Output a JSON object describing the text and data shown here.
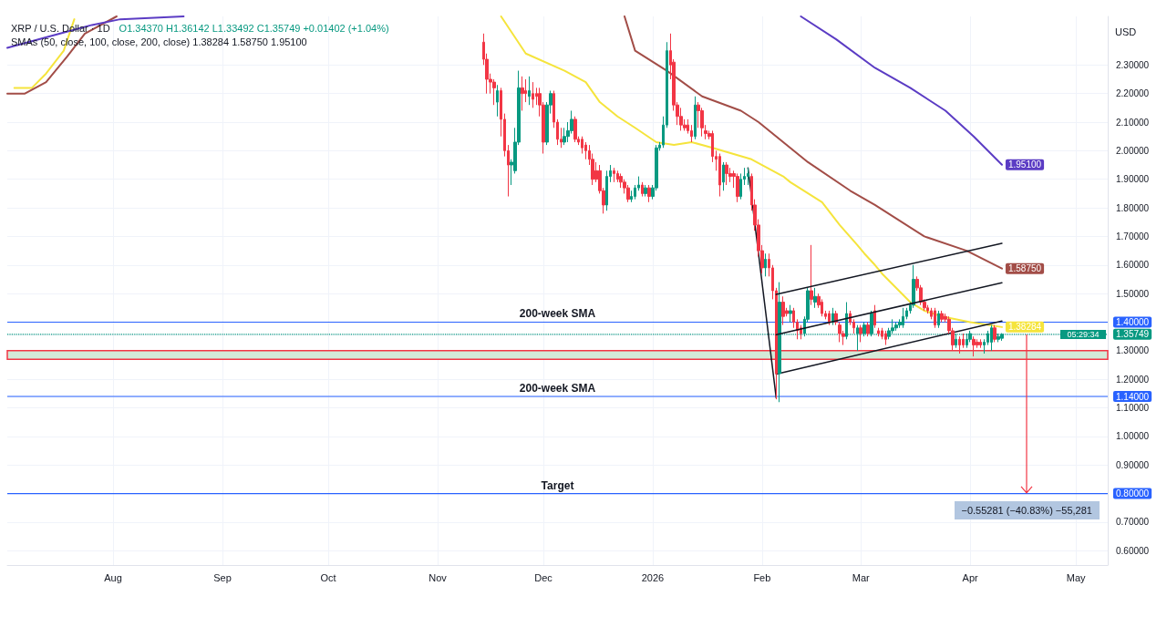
{
  "chart_data": {
    "type": "candlestick",
    "title": "XRP / U.S. Dollar · 1D",
    "ylabel": "USD",
    "annotations": [
      "O1.34370 H1.36142 L1.33492 C1.35749 +0.01402 (+1.04%)",
      "SMAs (50, close, 100, close, 200, close) 1.38284 1.58750 1.95100",
      "05:29:34",
      {
        "text": "−0.55281 (−40.83%) −55,281",
        "x": "2026-04-17",
        "y": 0.8
      }
    ],
    "xlim": [
      "2025-07-02",
      "2026-05-10"
    ],
    "xticks": [
      {
        "value": "2025-08-01",
        "label": "Aug"
      },
      {
        "value": "2025-09-01",
        "label": "Sep"
      },
      {
        "value": "2025-10-01",
        "label": "Oct"
      },
      {
        "value": "2025-11-01",
        "label": "Nov"
      },
      {
        "value": "2025-12-01",
        "label": "Dec"
      },
      {
        "value": "2026-01-01",
        "label": "2026"
      },
      {
        "value": "2026-02-01",
        "label": "Feb"
      },
      {
        "value": "2026-03-01",
        "label": "Mar"
      },
      {
        "value": "2026-04-01",
        "label": "Apr"
      },
      {
        "value": "2026-05-01",
        "label": "May"
      }
    ],
    "ylim": [
      0.55,
      2.47
    ],
    "yticks": [
      {
        "value": 0.6,
        "label": "0.60000"
      },
      {
        "value": 0.7,
        "label": "0.70000"
      },
      {
        "value": 0.8,
        "label": "0.80000"
      },
      {
        "value": 0.9,
        "label": "0.90000"
      },
      {
        "value": 1.0,
        "label": "1.00000"
      },
      {
        "value": 1.1,
        "label": "1.10000"
      },
      {
        "value": 1.14,
        "label": "1.14000"
      },
      {
        "value": 1.2,
        "label": "1.20000"
      },
      {
        "value": 1.3,
        "label": "1.30000"
      },
      {
        "value": 1.35749,
        "label": "1.35749"
      },
      {
        "value": 1.4,
        "label": "1.40000"
      },
      {
        "value": 1.5,
        "label": "1.50000"
      },
      {
        "value": 1.6,
        "label": "1.60000"
      },
      {
        "value": 1.7,
        "label": "1.70000"
      },
      {
        "value": 1.8,
        "label": "1.80000"
      },
      {
        "value": 1.9,
        "label": "1.90000"
      },
      {
        "value": 2.0,
        "label": "2.00000"
      },
      {
        "value": 2.1,
        "label": "2.10000"
      },
      {
        "value": 2.2,
        "label": "2.20000"
      },
      {
        "value": 2.3,
        "label": "2.30000"
      }
    ],
    "grid": true,
    "marker": "none",
    "line_style": "solid",
    "ref_lines": [
      {
        "axis": "y",
        "value": 1.4,
        "label": "200-week SMA",
        "color": "#2962ff"
      },
      {
        "axis": "y",
        "value": 1.14,
        "label": "200-week SMA",
        "color": "#2962ff"
      },
      {
        "axis": "y",
        "value": 0.8,
        "label": "Target",
        "color": "#2962ff"
      },
      {
        "axis": "y",
        "value": 1.35749,
        "color": "#089981",
        "line_style": "dotted"
      }
    ],
    "bands": [
      {
        "axis": "y",
        "from": 1.27,
        "to": 1.3,
        "color": "#d3ead8"
      }
    ],
    "series": [
      {
        "x": [
          "2025-11-14",
          "2025-11-15",
          "2025-11-16",
          "2025-11-17",
          "2025-11-18",
          "2025-11-19",
          "2025-11-20",
          "2025-11-21",
          "2025-11-22",
          "2025-11-23",
          "2025-11-24",
          "2025-11-25",
          "2025-11-26",
          "2025-11-27",
          "2025-11-28",
          "2025-11-29",
          "2025-11-30",
          "2025-12-01",
          "2025-12-02",
          "2025-12-03",
          "2025-12-04",
          "2025-12-05",
          "2025-12-06",
          "2025-12-07",
          "2025-12-08",
          "2025-12-09",
          "2025-12-10",
          "2025-12-11",
          "2025-12-12",
          "2025-12-13",
          "2025-12-14",
          "2025-12-15",
          "2025-12-16",
          "2025-12-17",
          "2025-12-18",
          "2025-12-19",
          "2025-12-20",
          "2025-12-21",
          "2025-12-22",
          "2025-12-23",
          "2025-12-24",
          "2025-12-25",
          "2025-12-26",
          "2025-12-27",
          "2025-12-28",
          "2025-12-29",
          "2025-12-30",
          "2025-12-31",
          "2026-01-01",
          "2026-01-02",
          "2026-01-03",
          "2026-01-04",
          "2026-01-05",
          "2026-01-06",
          "2026-01-07",
          "2026-01-08",
          "2026-01-09",
          "2026-01-10",
          "2026-01-11",
          "2026-01-12",
          "2026-01-13",
          "2026-01-14",
          "2026-01-15",
          "2026-01-16",
          "2026-01-17",
          "2026-01-18",
          "2026-01-19",
          "2026-01-20",
          "2026-01-21",
          "2026-01-22",
          "2026-01-23",
          "2026-01-24",
          "2026-01-25",
          "2026-01-26",
          "2026-01-27",
          "2026-01-28",
          "2026-01-29",
          "2026-01-30",
          "2026-01-31",
          "2026-02-01",
          "2026-02-02",
          "2026-02-03",
          "2026-02-04",
          "2026-02-05",
          "2026-02-06",
          "2026-02-07",
          "2026-02-08",
          "2026-02-09",
          "2026-02-10",
          "2026-02-11",
          "2026-02-12",
          "2026-02-13",
          "2026-02-14",
          "2026-02-15",
          "2026-02-16",
          "2026-02-17",
          "2026-02-18",
          "2026-02-19",
          "2026-02-20",
          "2026-02-21",
          "2026-02-22",
          "2026-02-23",
          "2026-02-24",
          "2026-02-25",
          "2026-02-26",
          "2026-02-27",
          "2026-02-28",
          "2026-03-01",
          "2026-03-02",
          "2026-03-03",
          "2026-03-04",
          "2026-03-05",
          "2026-03-06",
          "2026-03-07",
          "2026-03-08",
          "2026-03-09",
          "2026-03-10",
          "2026-03-11",
          "2026-03-12",
          "2026-03-13",
          "2026-03-14",
          "2026-03-15",
          "2026-03-16",
          "2026-03-17",
          "2026-03-18",
          "2026-03-19",
          "2026-03-20",
          "2026-03-21",
          "2026-03-22",
          "2026-03-23",
          "2026-03-24",
          "2026-03-25",
          "2026-03-26",
          "2026-03-27",
          "2026-03-28",
          "2026-03-29",
          "2026-03-30",
          "2026-03-31",
          "2026-04-01",
          "2026-04-02",
          "2026-04-03",
          "2026-04-04",
          "2026-04-05",
          "2026-04-06",
          "2026-04-07",
          "2026-04-08",
          "2026-04-09",
          "2026-04-10"
        ],
        "ohlc": [
          [
            2.38,
            2.41,
            2.3,
            2.32
          ],
          [
            2.32,
            2.34,
            2.2,
            2.25
          ],
          [
            2.25,
            2.27,
            2.2,
            2.24
          ],
          [
            2.24,
            2.25,
            2.16,
            2.22
          ],
          [
            2.17,
            2.23,
            2.12,
            2.21
          ],
          [
            2.21,
            2.22,
            2.05,
            2.11
          ],
          [
            2.11,
            2.13,
            1.98,
            2.0
          ],
          [
            2.0,
            2.02,
            1.84,
            1.95
          ],
          [
            1.95,
            1.97,
            1.88,
            1.96
          ],
          [
            1.93,
            2.08,
            1.92,
            2.03
          ],
          [
            2.03,
            2.28,
            2.02,
            2.22
          ],
          [
            2.22,
            2.26,
            2.14,
            2.2
          ],
          [
            2.21,
            2.25,
            2.17,
            2.2
          ],
          [
            2.19,
            2.26,
            2.16,
            2.21
          ],
          [
            2.2,
            2.24,
            2.15,
            2.18
          ],
          [
            2.2,
            2.22,
            2.16,
            2.19
          ],
          [
            2.2,
            2.22,
            2.12,
            2.16
          ],
          [
            2.16,
            2.17,
            1.99,
            2.03
          ],
          [
            2.03,
            2.17,
            2.02,
            2.16
          ],
          [
            2.16,
            2.21,
            2.13,
            2.2
          ],
          [
            2.2,
            2.21,
            2.08,
            2.1
          ],
          [
            2.1,
            2.11,
            2.02,
            2.04
          ],
          [
            2.04,
            2.08,
            2.01,
            2.03
          ],
          [
            2.03,
            2.08,
            2.02,
            2.05
          ],
          [
            2.05,
            2.1,
            2.03,
            2.07
          ],
          [
            2.07,
            2.14,
            2.06,
            2.11
          ],
          [
            2.11,
            2.12,
            2.03,
            2.04
          ],
          [
            2.04,
            2.05,
            2.02,
            2.03
          ],
          [
            2.04,
            2.05,
            1.99,
            2.01
          ],
          [
            2.02,
            2.03,
            1.97,
            2.0
          ],
          [
            2.0,
            2.02,
            1.95,
            1.97
          ],
          [
            1.97,
            1.99,
            1.88,
            1.9
          ],
          [
            1.93,
            1.96,
            1.89,
            1.9
          ],
          [
            1.93,
            1.95,
            1.85,
            1.86
          ],
          [
            1.86,
            1.87,
            1.78,
            1.81
          ],
          [
            1.81,
            1.93,
            1.79,
            1.91
          ],
          [
            1.91,
            1.95,
            1.89,
            1.93
          ],
          [
            1.93,
            1.94,
            1.89,
            1.92
          ],
          [
            1.92,
            1.93,
            1.89,
            1.9
          ],
          [
            1.91,
            1.92,
            1.87,
            1.89
          ],
          [
            1.89,
            1.9,
            1.85,
            1.87
          ],
          [
            1.87,
            1.88,
            1.82,
            1.83
          ],
          [
            1.83,
            1.86,
            1.82,
            1.84
          ],
          [
            1.84,
            1.88,
            1.83,
            1.87
          ],
          [
            1.87,
            1.91,
            1.86,
            1.88
          ],
          [
            1.88,
            1.89,
            1.84,
            1.85
          ],
          [
            1.85,
            1.88,
            1.84,
            1.87
          ],
          [
            1.87,
            1.88,
            1.82,
            1.84
          ],
          [
            1.84,
            1.88,
            1.83,
            1.87
          ],
          [
            1.87,
            2.02,
            1.86,
            2.01
          ],
          [
            2.01,
            2.03,
            2.0,
            2.02
          ],
          [
            2.02,
            2.12,
            2.01,
            2.09
          ],
          [
            2.09,
            2.38,
            2.08,
            2.35
          ],
          [
            2.35,
            2.41,
            2.25,
            2.3
          ],
          [
            2.31,
            2.32,
            2.14,
            2.16
          ],
          [
            2.16,
            2.17,
            2.09,
            2.12
          ],
          [
            2.12,
            2.15,
            2.07,
            2.09
          ],
          [
            2.09,
            2.11,
            2.07,
            2.08
          ],
          [
            2.09,
            2.11,
            2.06,
            2.07
          ],
          [
            2.07,
            2.09,
            2.03,
            2.05
          ],
          [
            2.05,
            2.19,
            2.04,
            2.16
          ],
          [
            2.16,
            2.17,
            2.08,
            2.14
          ],
          [
            2.14,
            2.15,
            2.05,
            2.08
          ],
          [
            2.07,
            2.09,
            2.04,
            2.06
          ],
          [
            2.06,
            2.07,
            2.04,
            2.05
          ],
          [
            2.06,
            2.07,
            1.96,
            1.98
          ],
          [
            1.98,
            2.0,
            1.93,
            1.97
          ],
          [
            1.98,
            1.99,
            1.84,
            1.88
          ],
          [
            1.89,
            1.96,
            1.86,
            1.95
          ],
          [
            1.95,
            1.96,
            1.88,
            1.92
          ],
          [
            1.92,
            1.94,
            1.89,
            1.91
          ],
          [
            1.92,
            1.93,
            1.87,
            1.91
          ],
          [
            1.91,
            1.92,
            1.82,
            1.84
          ],
          [
            1.84,
            1.92,
            1.83,
            1.9
          ],
          [
            1.9,
            1.94,
            1.88,
            1.91
          ],
          [
            1.91,
            1.94,
            1.88,
            1.92
          ],
          [
            1.91,
            1.92,
            1.79,
            1.81
          ],
          [
            1.81,
            1.83,
            1.72,
            1.74
          ],
          [
            1.74,
            1.76,
            1.63,
            1.65
          ],
          [
            1.65,
            1.67,
            1.57,
            1.59
          ],
          [
            1.59,
            1.64,
            1.56,
            1.62
          ],
          [
            1.62,
            1.64,
            1.56,
            1.59
          ],
          [
            1.59,
            1.6,
            1.48,
            1.51
          ],
          [
            1.51,
            1.52,
            1.13,
            1.22
          ],
          [
            1.22,
            1.54,
            1.12,
            1.47
          ],
          [
            1.47,
            1.49,
            1.39,
            1.42
          ],
          [
            1.44,
            1.45,
            1.42,
            1.43
          ],
          [
            1.43,
            1.46,
            1.4,
            1.44
          ],
          [
            1.44,
            1.45,
            1.38,
            1.4
          ],
          [
            1.4,
            1.41,
            1.34,
            1.37
          ],
          [
            1.38,
            1.39,
            1.34,
            1.36
          ],
          [
            1.36,
            1.42,
            1.35,
            1.41
          ],
          [
            1.41,
            1.52,
            1.4,
            1.51
          ],
          [
            1.51,
            1.67,
            1.46,
            1.48
          ],
          [
            1.47,
            1.52,
            1.45,
            1.49
          ],
          [
            1.49,
            1.5,
            1.45,
            1.46
          ],
          [
            1.47,
            1.48,
            1.42,
            1.43
          ],
          [
            1.43,
            1.44,
            1.41,
            1.42
          ],
          [
            1.43,
            1.44,
            1.39,
            1.4
          ],
          [
            1.4,
            1.45,
            1.39,
            1.43
          ],
          [
            1.43,
            1.44,
            1.39,
            1.4
          ],
          [
            1.39,
            1.4,
            1.33,
            1.36
          ],
          [
            1.36,
            1.37,
            1.32,
            1.35
          ],
          [
            1.35,
            1.47,
            1.34,
            1.43
          ],
          [
            1.43,
            1.44,
            1.39,
            1.4
          ],
          [
            1.4,
            1.41,
            1.36,
            1.38
          ],
          [
            1.36,
            1.39,
            1.3,
            1.38
          ],
          [
            1.38,
            1.39,
            1.33,
            1.36
          ],
          [
            1.36,
            1.4,
            1.35,
            1.39
          ],
          [
            1.39,
            1.4,
            1.35,
            1.36
          ],
          [
            1.36,
            1.44,
            1.35,
            1.43
          ],
          [
            1.44,
            1.46,
            1.38,
            1.39
          ],
          [
            1.37,
            1.38,
            1.35,
            1.36
          ],
          [
            1.37,
            1.38,
            1.34,
            1.35
          ],
          [
            1.36,
            1.37,
            1.32,
            1.34
          ],
          [
            1.35,
            1.38,
            1.34,
            1.37
          ],
          [
            1.37,
            1.41,
            1.36,
            1.38
          ],
          [
            1.38,
            1.4,
            1.37,
            1.39
          ],
          [
            1.39,
            1.41,
            1.38,
            1.4
          ],
          [
            1.39,
            1.45,
            1.38,
            1.42
          ],
          [
            1.42,
            1.45,
            1.41,
            1.44
          ],
          [
            1.44,
            1.47,
            1.43,
            1.46
          ],
          [
            1.46,
            1.6,
            1.45,
            1.55
          ],
          [
            1.55,
            1.56,
            1.51,
            1.52
          ],
          [
            1.52,
            1.53,
            1.46,
            1.47
          ],
          [
            1.47,
            1.48,
            1.44,
            1.45
          ],
          [
            1.45,
            1.46,
            1.43,
            1.44
          ],
          [
            1.44,
            1.45,
            1.41,
            1.42
          ],
          [
            1.44,
            1.45,
            1.38,
            1.39
          ],
          [
            1.39,
            1.44,
            1.38,
            1.43
          ],
          [
            1.43,
            1.44,
            1.4,
            1.41
          ],
          [
            1.42,
            1.43,
            1.4,
            1.41
          ],
          [
            1.41,
            1.42,
            1.36,
            1.37
          ],
          [
            1.37,
            1.38,
            1.3,
            1.32
          ],
          [
            1.32,
            1.36,
            1.31,
            1.34
          ],
          [
            1.34,
            1.35,
            1.29,
            1.32
          ],
          [
            1.34,
            1.36,
            1.31,
            1.32
          ],
          [
            1.32,
            1.36,
            1.31,
            1.34
          ],
          [
            1.34,
            1.37,
            1.33,
            1.36
          ],
          [
            1.34,
            1.35,
            1.28,
            1.32
          ],
          [
            1.33,
            1.34,
            1.31,
            1.32
          ],
          [
            1.33,
            1.34,
            1.31,
            1.32
          ],
          [
            1.32,
            1.34,
            1.29,
            1.33
          ],
          [
            1.33,
            1.37,
            1.32,
            1.36
          ],
          [
            1.33,
            1.39,
            1.3,
            1.38
          ],
          [
            1.38,
            1.39,
            1.33,
            1.34
          ],
          [
            1.34,
            1.36,
            1.33,
            1.35
          ],
          [
            1.3437,
            1.36142,
            1.33492,
            1.35749
          ]
        ]
      },
      {
        "type": "line",
        "color": "#f5e43c",
        "x": [
          "2025-07-04",
          "2025-07-09",
          "2025-07-13",
          "2025-07-18",
          "2025-07-21",
          "2025-10-01",
          "2025-11-19",
          "2025-11-26",
          "2025-12-07",
          "2025-12-13",
          "2025-12-17",
          "2025-12-22",
          "2025-12-27",
          "2026-01-02",
          "2026-01-07",
          "2026-01-12",
          "2026-01-18",
          "2026-01-29",
          "2026-02-07",
          "2026-02-09",
          "2026-02-18",
          "2026-02-23",
          "2026-02-28",
          "2026-03-02",
          "2026-03-05",
          "2026-03-07",
          "2026-03-15",
          "2026-03-19",
          "2026-03-24",
          "2026-04-01",
          "2026-04-10"
        ],
        "values": [
          2.22,
          2.22,
          2.27,
          2.35,
          2.46,
          null,
          2.47,
          2.34,
          2.28,
          2.24,
          2.17,
          2.12,
          2.08,
          2.03,
          2.02,
          2.03,
          2.01,
          1.97,
          1.91,
          1.89,
          1.82,
          1.74,
          1.67,
          1.64,
          1.6,
          1.57,
          1.47,
          1.44,
          1.42,
          1.4,
          1.38284
        ],
        "value_labels": [
          null,
          null,
          null,
          null,
          null,
          null,
          null,
          null,
          null,
          null,
          null,
          null,
          null,
          null,
          null,
          null,
          null,
          null,
          null,
          null,
          null,
          null,
          null,
          null,
          null,
          null,
          null,
          null,
          null,
          null,
          "1.38284"
        ]
      },
      {
        "type": "line",
        "color": "#a24d47",
        "x": [
          "2025-07-02",
          "2025-07-07",
          "2025-07-13",
          "2025-07-19",
          "2025-07-24",
          "2025-08-02",
          "2025-10-01",
          "2025-12-24",
          "2025-12-27",
          "2026-01-05",
          "2026-01-15",
          "2026-01-26",
          "2026-01-31",
          "2026-02-07",
          "2026-02-14",
          "2026-02-26",
          "2026-03-05",
          "2026-03-19",
          "2026-03-31",
          "2026-04-10"
        ],
        "values": [
          2.2,
          2.2,
          2.24,
          2.33,
          2.41,
          2.47,
          null,
          2.47,
          2.35,
          2.28,
          2.19,
          2.14,
          2.1,
          2.03,
          1.96,
          1.86,
          1.81,
          1.7,
          1.65,
          1.5875
        ],
        "value_labels": [
          null,
          null,
          null,
          null,
          null,
          null,
          null,
          null,
          null,
          null,
          null,
          null,
          null,
          null,
          null,
          null,
          null,
          null,
          null,
          "1.58750"
        ]
      },
      {
        "type": "line",
        "color": "#5b3cc4",
        "x": [
          "2025-07-02",
          "2025-07-17",
          "2025-07-26",
          "2025-08-03",
          "2025-08-21",
          "2025-11-01",
          "2026-02-12",
          "2026-02-22",
          "2026-03-05",
          "2026-03-15",
          "2026-03-25",
          "2026-04-02",
          "2026-04-10"
        ],
        "values": [
          2.36,
          2.41,
          2.44,
          2.46,
          2.47,
          null,
          2.47,
          2.39,
          2.29,
          2.22,
          2.14,
          2.05,
          1.951
        ],
        "value_labels": [
          null,
          null,
          null,
          null,
          null,
          null,
          null,
          null,
          null,
          null,
          null,
          null,
          "1.95100"
        ]
      },
      {
        "type": "line",
        "color": "#131722",
        "x": [
          "2026-01-28",
          "2026-02-05"
        ],
        "values": [
          1.94,
          1.135
        ]
      },
      {
        "type": "line",
        "color": "#131722",
        "x": [
          "2026-02-05",
          "2026-04-10"
        ],
        "values": [
          1.497,
          1.676
        ]
      },
      {
        "type": "line",
        "color": "#131722",
        "x": [
          "2026-02-05",
          "2026-04-10"
        ],
        "values": [
          1.356,
          1.538
        ]
      },
      {
        "type": "line",
        "color": "#131722",
        "x": [
          "2026-02-05",
          "2026-04-10"
        ],
        "values": [
          1.218,
          1.404
        ]
      }
    ]
  }
}
